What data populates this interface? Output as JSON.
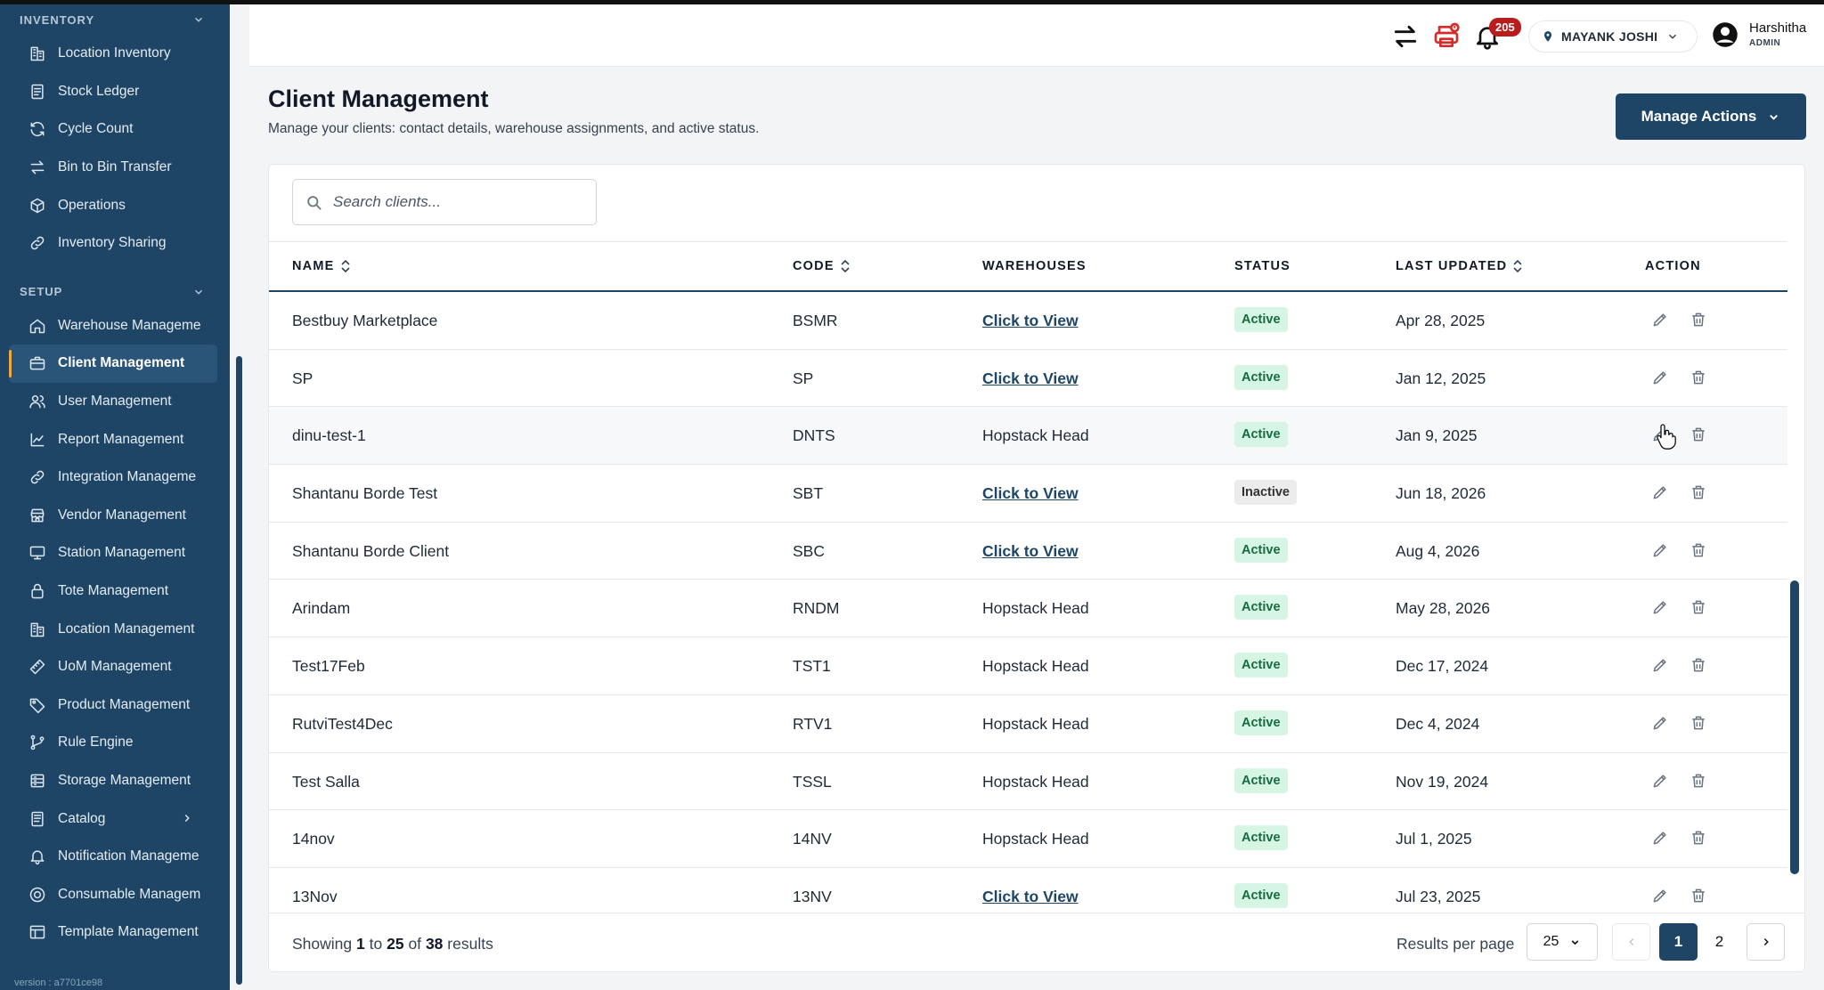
{
  "sidebar": {
    "sections": [
      {
        "title": "INVENTORY",
        "items": [
          {
            "label": "Location Inventory",
            "icon": "building-icon"
          },
          {
            "label": "Stock Ledger",
            "icon": "ledger-icon"
          },
          {
            "label": "Cycle Count",
            "icon": "refresh-icon"
          },
          {
            "label": "Bin to Bin Transfer",
            "icon": "transfer-icon"
          },
          {
            "label": "Operations",
            "icon": "cube-icon"
          },
          {
            "label": "Inventory Sharing",
            "icon": "link-icon"
          }
        ]
      },
      {
        "title": "SETUP",
        "items": [
          {
            "label": "Warehouse Manageme",
            "icon": "home-icon"
          },
          {
            "label": "Client Management",
            "icon": "briefcase-icon",
            "active": true
          },
          {
            "label": "User Management",
            "icon": "users-icon"
          },
          {
            "label": "Report Management",
            "icon": "chart-icon"
          },
          {
            "label": "Integration Manageme",
            "icon": "link-icon"
          },
          {
            "label": "Vendor Management",
            "icon": "store-icon"
          },
          {
            "label": "Station Management",
            "icon": "monitor-icon"
          },
          {
            "label": "Tote Management",
            "icon": "lock-icon"
          },
          {
            "label": "Location Management",
            "icon": "building-icon"
          },
          {
            "label": "UoM Management",
            "icon": "ruler-icon"
          },
          {
            "label": "Product Management",
            "icon": "tag-icon"
          },
          {
            "label": "Rule Engine",
            "icon": "branch-icon"
          },
          {
            "label": "Storage Management",
            "icon": "storage-icon"
          },
          {
            "label": "Catalog",
            "icon": "book-icon",
            "has_submenu": true
          },
          {
            "label": "Notification Manageme",
            "icon": "bell-icon"
          },
          {
            "label": "Consumable Managem",
            "icon": "target-icon"
          },
          {
            "label": "Template Management",
            "icon": "template-icon"
          }
        ]
      }
    ],
    "version": "version : a7701ce98"
  },
  "header": {
    "notification_count": "205",
    "location": "MAYANK JOSHI",
    "user_name": "Harshitha",
    "user_role": "ADMIN"
  },
  "page": {
    "title": "Client Management",
    "subtitle": "Manage your clients: contact details, warehouse assignments, and active status.",
    "manage_actions_label": "Manage Actions",
    "search_placeholder": "Search clients..."
  },
  "table": {
    "columns": {
      "name": "NAME",
      "code": "CODE",
      "warehouses": "WAREHOUSES",
      "status": "STATUS",
      "last_updated": "LAST UPDATED",
      "action": "ACTION"
    },
    "rows": [
      {
        "name": "Bestbuy Marketplace",
        "code": "BSMR",
        "warehouses": "Click to View",
        "wh_link": true,
        "status": "Active",
        "updated": "Apr 28, 2025"
      },
      {
        "name": "SP",
        "code": "SP",
        "warehouses": "Click to View",
        "wh_link": true,
        "status": "Active",
        "updated": "Jan 12, 2025"
      },
      {
        "name": "dinu-test-1",
        "code": "DNTS",
        "warehouses": "Hopstack Head",
        "wh_link": false,
        "status": "Active",
        "updated": "Jan 9, 2025",
        "hover": true
      },
      {
        "name": "Shantanu Borde Test",
        "code": "SBT",
        "warehouses": "Click to View",
        "wh_link": true,
        "status": "Inactive",
        "updated": "Jun 18, 2026"
      },
      {
        "name": "Shantanu Borde Client",
        "code": "SBC",
        "warehouses": "Click to View",
        "wh_link": true,
        "status": "Active",
        "updated": "Aug 4, 2026"
      },
      {
        "name": "Arindam",
        "code": "RNDM",
        "warehouses": "Hopstack Head",
        "wh_link": false,
        "status": "Active",
        "updated": "May 28, 2026"
      },
      {
        "name": "Test17Feb",
        "code": "TST1",
        "warehouses": "Hopstack Head",
        "wh_link": false,
        "status": "Active",
        "updated": "Dec 17, 2024"
      },
      {
        "name": "RutviTest4Dec",
        "code": "RTV1",
        "warehouses": "Hopstack Head",
        "wh_link": false,
        "status": "Active",
        "updated": "Dec 4, 2024"
      },
      {
        "name": "Test Salla",
        "code": "TSSL",
        "warehouses": "Hopstack Head",
        "wh_link": false,
        "status": "Active",
        "updated": "Nov 19, 2024"
      },
      {
        "name": "14nov",
        "code": "14NV",
        "warehouses": "Hopstack Head",
        "wh_link": false,
        "status": "Active",
        "updated": "Jul 1, 2025"
      },
      {
        "name": "13Nov",
        "code": "13NV",
        "warehouses": "Click to View",
        "wh_link": true,
        "status": "Active",
        "updated": "Jul 23, 2025"
      }
    ]
  },
  "footer": {
    "showing_prefix": "Showing",
    "from": "1",
    "to_word": "to",
    "to": "25",
    "of_word": "of",
    "total": "38",
    "results_word": "results",
    "results_per_page_label": "Results per page",
    "per_page": "25",
    "pages": [
      "1",
      "2"
    ],
    "current_page": "1"
  },
  "colors": {
    "brand": "#1e4566",
    "active_bg": "#d7f5e4",
    "active_text": "#176b3f",
    "badge": "#b91c1c",
    "accent": "#f0a93b"
  }
}
